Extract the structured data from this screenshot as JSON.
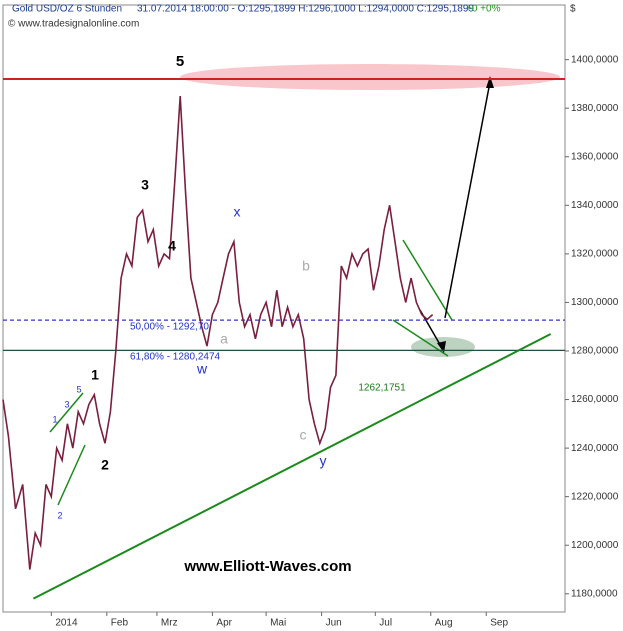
{
  "header": {
    "title": "Gold USD/OZ 6 Stunden",
    "info": "31.07.2014 18:00:00 - O:1295,1899 H:1296,1000 L:1294,0000 C:1295,1899",
    "change": "+0 +0%",
    "copyright": "© www.tradesignalonline.com",
    "currency": "$"
  },
  "chart_data": {
    "type": "line",
    "series": [
      {
        "color": "#7a1f3d",
        "x": [
          -27,
          -24,
          -20,
          -16,
          -12,
          -9,
          -6,
          -3,
          0,
          3,
          6,
          9,
          12,
          15,
          18,
          21,
          24,
          27,
          30,
          33,
          36,
          39,
          42,
          45,
          48,
          51,
          54,
          57,
          60,
          63,
          66,
          69,
          72,
          75,
          78,
          81,
          84,
          87,
          90,
          93,
          96,
          99,
          102,
          105,
          108,
          111,
          114,
          117,
          120,
          123,
          126,
          129,
          132,
          135,
          138,
          141,
          144,
          147,
          150,
          153,
          156,
          159,
          162,
          165,
          168,
          171,
          174,
          177,
          180,
          183,
          186,
          189,
          192,
          195,
          198,
          201,
          204,
          207,
          210,
          213
        ],
        "values": [
          1260,
          1245,
          1215,
          1225,
          1190,
          1205,
          1200,
          1225,
          1220,
          1240,
          1235,
          1250,
          1240,
          1255,
          1250,
          1258,
          1262,
          1250,
          1242,
          1255,
          1280,
          1310,
          1320,
          1315,
          1335,
          1338,
          1325,
          1330,
          1315,
          1320,
          1318,
          1350,
          1385,
          1345,
          1310,
          1300,
          1290,
          1282,
          1295,
          1300,
          1310,
          1320,
          1325,
          1300,
          1290,
          1295,
          1285,
          1295,
          1300,
          1290,
          1305,
          1290,
          1298,
          1290,
          1295,
          1285,
          1260,
          1250,
          1242,
          1248,
          1265,
          1270,
          1315,
          1310,
          1320,
          1315,
          1320,
          1322,
          1305,
          1315,
          1330,
          1340,
          1325,
          1310,
          1300,
          1310,
          1300,
          1295,
          1293,
          1295
        ]
      }
    ],
    "levels": [
      {
        "value": 1392,
        "color": "#cc2222"
      },
      {
        "value": 1292.7,
        "color": "#3333cc"
      },
      {
        "value": 1280.25,
        "color": "#1f4f3f"
      }
    ],
    "trendline": {
      "color": "#1a8a1a",
      "x": [
        -10,
        279
      ],
      "values": [
        1178,
        1287
      ]
    },
    "annotations": [
      "5",
      "3",
      "4",
      "1",
      "2",
      "x",
      "w",
      "b",
      "a",
      "c",
      "y",
      "1",
      "3",
      "5",
      "2",
      "50,00% - 1292,70",
      "61,80% - 1280,2474",
      "1262,1751",
      "www.Elliott-Waves.com"
    ],
    "xlim": [
      -27,
      287
    ],
    "ylim": [
      1172.5,
      1422.5
    ],
    "xticks": [
      {
        "value": 0,
        "label": "2014"
      },
      {
        "value": 31,
        "label": "Feb"
      },
      {
        "value": 59,
        "label": "Mrz"
      },
      {
        "value": 90,
        "label": "Apr"
      },
      {
        "value": 120,
        "label": "Mai"
      },
      {
        "value": 151,
        "label": "Jun"
      },
      {
        "value": 181,
        "label": "Jul"
      },
      {
        "value": 212,
        "label": "Aug"
      },
      {
        "value": 243,
        "label": "Sep"
      }
    ],
    "yticks": [
      {
        "value": 1180,
        "label": "1180,0000"
      },
      {
        "value": 1200,
        "label": "1200,0000"
      },
      {
        "value": 1220,
        "label": "1220,0000"
      },
      {
        "value": 1240,
        "label": "1240,0000"
      },
      {
        "value": 1260,
        "label": "1260,0000"
      },
      {
        "value": 1280,
        "label": "1280,0000"
      },
      {
        "value": 1300,
        "label": "1300,0000"
      },
      {
        "value": 1320,
        "label": "1320,0000"
      },
      {
        "value": 1340,
        "label": "1340,0000"
      },
      {
        "value": 1360,
        "label": "1360,0000"
      },
      {
        "value": 1380,
        "label": "1380,0000"
      },
      {
        "value": 1400,
        "label": "1400,0000"
      }
    ]
  }
}
